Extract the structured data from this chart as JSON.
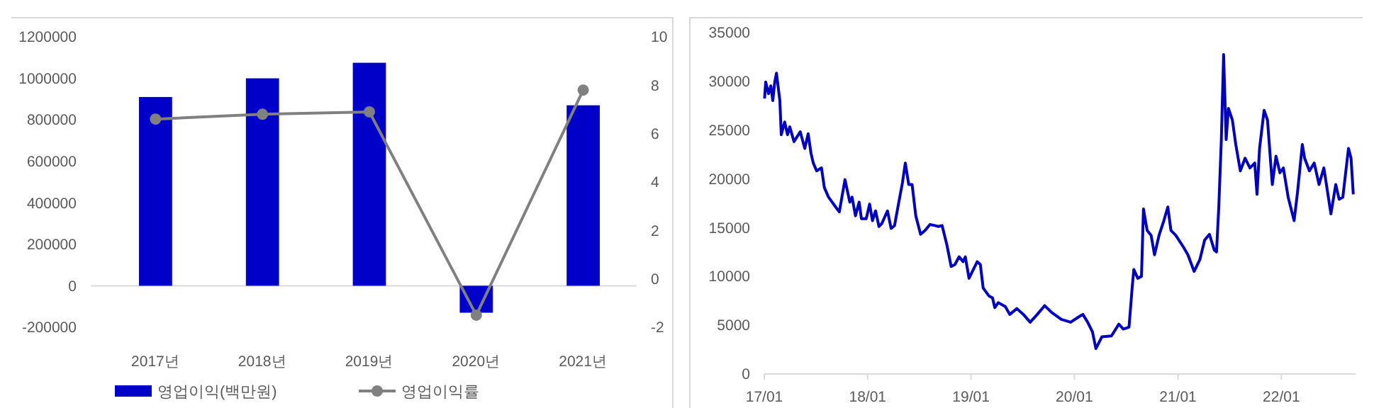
{
  "chart_data": [
    {
      "type": "bar",
      "categories": [
        "2017년",
        "2018년",
        "2019년",
        "2020년",
        "2021년"
      ],
      "series": [
        {
          "name": "영업이익(백만원)",
          "type": "bar",
          "color": "#0000c8",
          "values": [
            910000,
            1000000,
            1075000,
            -130000,
            870000
          ]
        },
        {
          "name": "영업이익률",
          "type": "line",
          "axis": "y2",
          "color": "#808080",
          "marker": "circle",
          "values": [
            6.6,
            6.8,
            6.9,
            -1.5,
            7.8
          ]
        }
      ],
      "ylim": [
        -200000,
        1200000
      ],
      "yticks": [
        -200000,
        0,
        200000,
        400000,
        600000,
        800000,
        1000000,
        1200000
      ],
      "y2lim": [
        -2,
        10
      ],
      "y2ticks": [
        -2,
        0,
        2,
        4,
        6,
        8,
        10
      ],
      "legend": "bottom"
    },
    {
      "type": "line",
      "series": [
        {
          "color": "#0000c0",
          "x": [
            "2017-01-02",
            "2017-01-06",
            "2017-01-16",
            "2017-01-24",
            "2017-01-31",
            "2017-02-07",
            "2017-02-13",
            "2017-02-25",
            "2017-03-02",
            "2017-03-14",
            "2017-03-24",
            "2017-04-01",
            "2017-04-16",
            "2017-05-08",
            "2017-05-24",
            "2017-06-05",
            "2017-06-15",
            "2017-06-23",
            "2017-07-05",
            "2017-07-22",
            "2017-08-01",
            "2017-08-16",
            "2017-09-10",
            "2017-09-23",
            "2017-10-13",
            "2017-10-30",
            "2017-11-07",
            "2017-11-19",
            "2017-12-02",
            "2017-12-10",
            "2017-12-27",
            "2018-01-08",
            "2018-01-18",
            "2018-01-29",
            "2018-02-10",
            "2018-02-20",
            "2018-03-12",
            "2018-03-25",
            "2018-04-06",
            "2018-04-18",
            "2018-05-04",
            "2018-05-14",
            "2018-05-26",
            "2018-06-07",
            "2018-06-20",
            "2018-07-07",
            "2018-07-23",
            "2018-08-09",
            "2018-08-26",
            "2018-09-08",
            "2018-09-21",
            "2018-10-08",
            "2018-10-23",
            "2018-11-05",
            "2018-11-20",
            "2018-12-04",
            "2018-12-12",
            "2018-12-25",
            "2019-01-06",
            "2019-01-23",
            "2019-02-03",
            "2019-02-13",
            "2019-03-05",
            "2019-03-18",
            "2019-03-26",
            "2019-04-07",
            "2019-05-02",
            "2019-05-18",
            "2019-06-12",
            "2019-07-05",
            "2019-07-29",
            "2019-08-23",
            "2019-09-18",
            "2019-10-13",
            "2019-11-16",
            "2019-12-19",
            "2020-01-14",
            "2020-01-31",
            "2020-02-17",
            "2020-03-05",
            "2020-03-17",
            "2020-04-07",
            "2020-05-11",
            "2020-06-06",
            "2020-06-22",
            "2020-07-12",
            "2020-07-23",
            "2020-07-29",
            "2020-08-12",
            "2020-08-25",
            "2020-09-01",
            "2020-09-14",
            "2020-09-28",
            "2020-10-10",
            "2020-10-26",
            "2020-11-12",
            "2020-11-26",
            "2020-12-07",
            "2020-12-24",
            "2021-01-20",
            "2021-02-05",
            "2021-02-27",
            "2021-03-19",
            "2021-04-05",
            "2021-04-22",
            "2021-05-09",
            "2021-05-17",
            "2021-05-25",
            "2021-06-03",
            "2021-06-11",
            "2021-06-20",
            "2021-06-28",
            "2021-07-12",
            "2021-07-24",
            "2021-08-09",
            "2021-08-26",
            "2021-09-12",
            "2021-09-29",
            "2021-10-07",
            "2021-10-16",
            "2021-11-01",
            "2021-11-13",
            "2021-11-30",
            "2021-12-13",
            "2021-12-27",
            "2022-01-08",
            "2022-01-25",
            "2022-02-15",
            "2022-02-27",
            "2022-03-16",
            "2022-03-24",
            "2022-04-10",
            "2022-04-27",
            "2022-05-14",
            "2022-05-31",
            "2022-06-25",
            "2022-07-12",
            "2022-07-24",
            "2022-08-06",
            "2022-08-26",
            "2022-09-04",
            "2022-09-12"
          ],
          "values": [
            28200,
            29900,
            28700,
            29500,
            28000,
            29900,
            30800,
            28000,
            24500,
            25800,
            24500,
            25300,
            23800,
            24800,
            23100,
            24600,
            22600,
            21600,
            20800,
            21100,
            19100,
            18100,
            17100,
            16600,
            19900,
            17600,
            18100,
            16200,
            17600,
            15900,
            15900,
            17400,
            15700,
            16700,
            15100,
            15400,
            16700,
            14900,
            15200,
            17100,
            19600,
            21600,
            19400,
            19400,
            16200,
            14300,
            14700,
            15300,
            15200,
            15100,
            15200,
            13200,
            11000,
            11200,
            12000,
            11500,
            12000,
            9800,
            10500,
            11500,
            11200,
            8800,
            8000,
            7800,
            6800,
            7300,
            6900,
            6100,
            6700,
            6100,
            5300,
            6100,
            7000,
            6300,
            5600,
            5300,
            5800,
            6100,
            5300,
            4300,
            2600,
            3800,
            3900,
            5100,
            4600,
            4800,
            8800,
            10700,
            9800,
            10000,
            16900,
            14700,
            14200,
            12200,
            14200,
            15700,
            17100,
            14700,
            14200,
            13000,
            12200,
            10500,
            11700,
            13700,
            14300,
            12700,
            12500,
            17100,
            24000,
            32700,
            24000,
            27200,
            26000,
            23500,
            20800,
            22100,
            21100,
            21600,
            18400,
            23100,
            27000,
            26000,
            19400,
            22300,
            20600,
            21100,
            18100,
            15700,
            18600,
            23500,
            22100,
            20800,
            21600,
            19400,
            21100,
            16400,
            19400,
            17900,
            18100,
            23100,
            22100,
            18400
          ]
        }
      ],
      "xlim": [
        "2017-01-01",
        "2022-09-20"
      ],
      "xticks": [
        {
          "value": "2017-01-01",
          "label": "17/01"
        },
        {
          "value": "2018-01-01",
          "label": "18/01"
        },
        {
          "value": "2019-01-01",
          "label": "19/01"
        },
        {
          "value": "2020-01-01",
          "label": "20/01"
        },
        {
          "value": "2021-01-01",
          "label": "21/01"
        },
        {
          "value": "2022-01-01",
          "label": "22/01"
        }
      ],
      "ylim": [
        0,
        35000
      ],
      "yticks": [
        0,
        5000,
        10000,
        15000,
        20000,
        25000,
        30000,
        35000
      ]
    }
  ]
}
